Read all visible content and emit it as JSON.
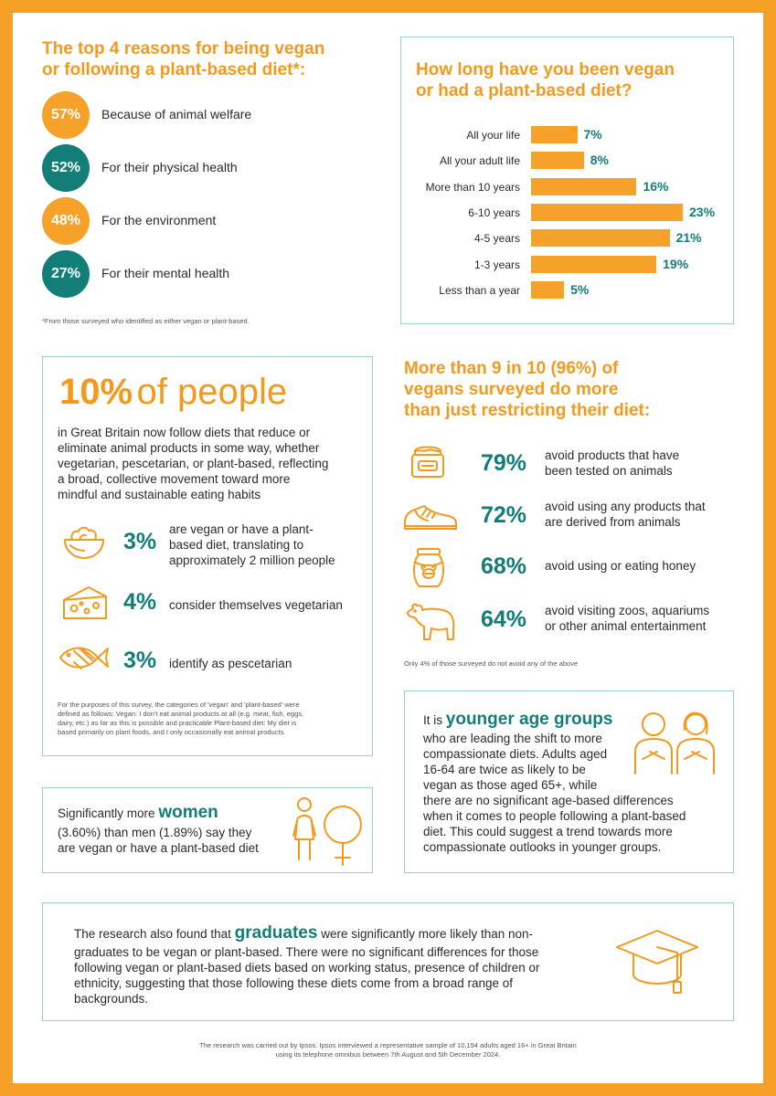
{
  "reasons": {
    "title_line1": "The top 4 reasons for being vegan",
    "title_line2": "or following a plant-based diet*:",
    "items": [
      {
        "pct": "57%",
        "text": "Because of animal welfare",
        "color": "#F5A12A"
      },
      {
        "pct": "52%",
        "text": "For their physical health",
        "color": "#127E77"
      },
      {
        "pct": "48%",
        "text": "For the environment",
        "color": "#F5A12A"
      },
      {
        "pct": "27%",
        "text": "For their mental health",
        "color": "#127E77"
      }
    ],
    "footnote": "*From those surveyed who identified as either vegan or plant-based."
  },
  "chart_data": {
    "type": "bar",
    "orientation": "horizontal",
    "title": "How long have you been vegan or had a plant-based diet?",
    "title_line1": "How long have you been vegan",
    "title_line2": "or had a plant-based diet?",
    "categories": [
      "All your life",
      "All your adult life",
      "More than 10 years",
      "6-10 years",
      "4-5 years",
      "1-3 years",
      "Less than a year"
    ],
    "values": [
      7,
      8,
      16,
      23,
      21,
      19,
      5
    ],
    "value_labels": [
      "7%",
      "8%",
      "16%",
      "23%",
      "21%",
      "19%",
      "5%"
    ],
    "xlim": [
      0,
      23
    ],
    "bar_color": "#F5A12A",
    "label_color": "#127E77",
    "grid": false
  },
  "tenpct": {
    "big_pct": "10%",
    "big_rest": "of people",
    "desc_lines": [
      "in Great Britain now follow diets that reduce or",
      "eliminate animal products in some way, whether",
      "vegetarian, pescetarian, or plant-based, reflecting",
      "a broad, collective movement toward more",
      "mindful and sustainable eating habits"
    ],
    "stats": [
      {
        "pct": "3%",
        "lines": [
          "are vegan or have a plant-",
          "based diet, translating to",
          "approximately 2 million people"
        ],
        "icon": "salad-bowl-icon"
      },
      {
        "pct": "4%",
        "lines": [
          "consider themselves vegetarian"
        ],
        "icon": "cheese-icon"
      },
      {
        "pct": "3%",
        "lines": [
          "identify as pescetarian"
        ],
        "icon": "fish-icon"
      }
    ],
    "note_lines": [
      "For the purposes of this survey, the categories of 'vegan' and 'plant-based' were",
      "defined as follows: Vegan: I don't eat animal products at all (e.g. meat, fish, eggs,",
      "dairy, etc.) as far as this is possible and practicable Plant-based diet: My diet is",
      "based primarily on plant foods, and I only occasionally eat animal products."
    ]
  },
  "more": {
    "title_lines": [
      "More than 9 in 10 (96%) of",
      "vegans surveyed do more",
      "than just restricting their diet:"
    ],
    "items": [
      {
        "pct": "79%",
        "lines": [
          "avoid products that have",
          "been tested on animals"
        ],
        "icon": "cosmetic-jar-icon"
      },
      {
        "pct": "72%",
        "lines": [
          "avoid using any products that",
          "are derived from animals"
        ],
        "icon": "shoe-icon"
      },
      {
        "pct": "68%",
        "lines": [
          "avoid using or eating honey"
        ],
        "icon": "honey-jar-icon"
      },
      {
        "pct": "64%",
        "lines": [
          "avoid visiting zoos, aquariums",
          "or other animal entertainment"
        ],
        "icon": "bear-icon"
      }
    ],
    "footnote": "Only 4% of those surveyed do not avoid any of the above"
  },
  "women": {
    "pre": "Significantly more",
    "highlight": "women",
    "line2": "(3.60%) than men  (1.89%) say they",
    "line3": "are vegan or have a plant-based diet"
  },
  "younger": {
    "pre": "It is",
    "highlight": "younger age groups",
    "lines": [
      "who are leading the shift to more",
      "compassionate diets. Adults aged",
      "16-64 are twice as likely to be",
      "vegan as those aged 65+, while",
      "there are no significant age-based differences",
      "when it comes to people following a plant-based",
      "diet. This could suggest a trend towards more",
      "compassionate outlooks in younger groups."
    ]
  },
  "graduates": {
    "pre": "The research also found that",
    "highlight": "graduates",
    "post": "were significantly more likely than non-",
    "lines": [
      "graduates to be vegan or plant-based. There were no significant differences for those",
      "following vegan or plant-based diets based on working status, presence of children or",
      "ethnicity, suggesting that those following these diets come from a broad range of",
      "backgrounds."
    ]
  },
  "footer": {
    "line1": "The research was carried out by Ipsos. Ipsos interviewed a representative sample of 10,194 adults aged 16+ in Great Britain",
    "line2": "using its telephone omnibus between 7th August and 5th December 2024."
  }
}
